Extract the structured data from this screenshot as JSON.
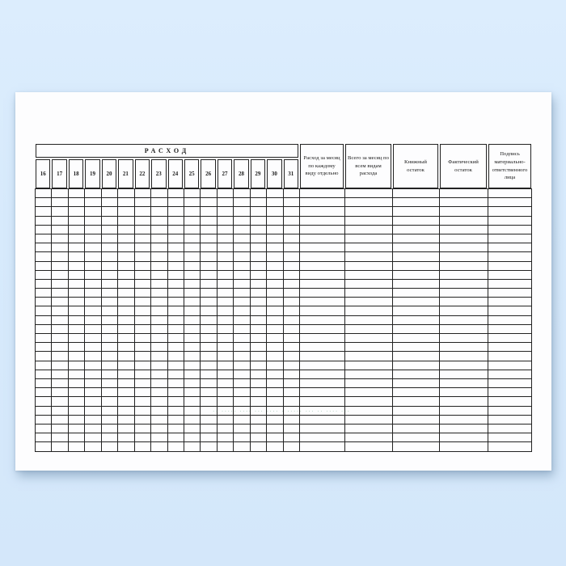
{
  "page": {
    "background_color": "#d7eafc",
    "paper_color": "#fdfdfe",
    "line_color": "#222222"
  },
  "table": {
    "title": "РАСХОД",
    "day_numbers": [
      "16",
      "17",
      "18",
      "19",
      "20",
      "21",
      "22",
      "23",
      "24",
      "25",
      "26",
      "27",
      "28",
      "29",
      "30",
      "31"
    ],
    "summary_columns": [
      "Расход за месяц по каждому виду отдельно",
      "Всего за месяц по всем видам расхода",
      "Книжный остаток",
      "Фактический остаток",
      "Подпись материально-ответственного лица"
    ],
    "body": {
      "rows": 29,
      "day_column_count": 16,
      "summary_column_count": 5
    }
  },
  "watermark": {
    "text": "·· ····· ···· ··· ···· · ····· ··· ·· ···· ···",
    "color": "#3f8f5f"
  }
}
